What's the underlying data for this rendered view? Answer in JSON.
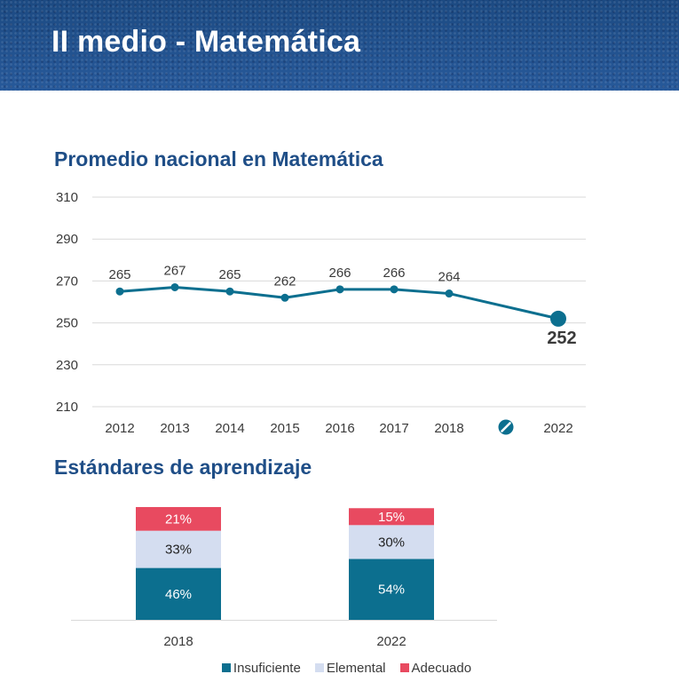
{
  "header": {
    "title": "II medio - Matemática"
  },
  "colors": {
    "line": "#0c6f8f",
    "insuficiente": "#0c6f8f",
    "elemental": "#d4ddf0",
    "adecuado": "#e84a60",
    "title": "#1f4e87"
  },
  "chart_data": [
    {
      "type": "line",
      "title": "Promedio nacional en Matemática",
      "x": [
        "2012",
        "2013",
        "2014",
        "2015",
        "2016",
        "2017",
        "2018",
        "2022"
      ],
      "series": [
        {
          "values": [
            265,
            267,
            265,
            262,
            266,
            266,
            264,
            252
          ]
        }
      ],
      "data_labels": [
        "265",
        "267",
        "265",
        "262",
        "266",
        "266",
        "264",
        "252"
      ],
      "yticks": [
        "310",
        "290",
        "270",
        "250",
        "230",
        "210"
      ],
      "ylim": [
        210,
        310
      ],
      "grid": true,
      "break_marker_between": [
        "2018",
        "2022"
      ],
      "break_icon": "no-data-icon",
      "highlighted_point": "2022"
    },
    {
      "type": "bar",
      "stacked": true,
      "title": "Estándares de aprendizaje",
      "categories": [
        "2018",
        "2022"
      ],
      "series": [
        {
          "name": "Insuficiente",
          "values": [
            46,
            54
          ],
          "labels": [
            "46%",
            "54%"
          ]
        },
        {
          "name": "Elemental",
          "values": [
            33,
            30
          ],
          "labels": [
            "33%",
            "30%"
          ]
        },
        {
          "name": "Adecuado",
          "values": [
            21,
            15
          ],
          "labels": [
            "21%",
            "15%"
          ]
        }
      ],
      "ylim": [
        0,
        100
      ],
      "legend": "bottom"
    }
  ]
}
